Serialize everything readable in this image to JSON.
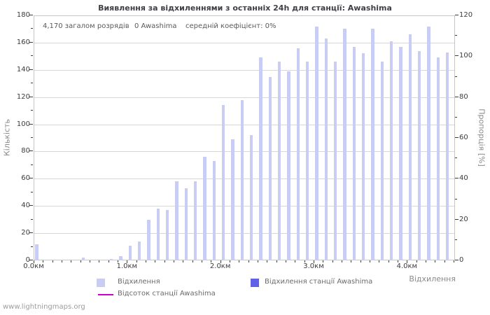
{
  "page": {
    "watermark": "www.lightningmaps.org"
  },
  "header": {
    "title": "Виявлення за відхиленнями з останніх 24h для станції: Awashima"
  },
  "stats": {
    "total": "4,170 загалом розрядів",
    "station": "0 Awashima",
    "coefficient": "середній коефіцієнт: 0%"
  },
  "axes": {
    "left_title": "Кількість",
    "right_title": "Пропорція [%]",
    "x_title": "Відхилення"
  },
  "legend": {
    "deviations": "Відхилення",
    "station_deviations": "Відхилення станції Awashima",
    "station_percent": "Відсоток станції Awashima"
  },
  "colors": {
    "bar": "#c9cdf3",
    "station_bar": "#6161e8",
    "percent_line": "#cc00cc",
    "grid": "#d6d6d6"
  },
  "chart_data": {
    "type": "bar",
    "title": "Виявлення за відхиленнями з останніх 24h для станції: Awashima",
    "xlabel": "Відхилення",
    "ylabel_left": "Кількість",
    "ylabel_right": "Пропорція [%]",
    "x_unit": "км",
    "bin_width_km": 0.1,
    "xlim_km": [
      0,
      4.515
    ],
    "ylim_left": [
      0,
      180
    ],
    "ylim_right": [
      0,
      120
    ],
    "grid": "horizontal-only",
    "legend_position": "bottom",
    "left_ticks": [
      0,
      20,
      40,
      60,
      80,
      100,
      120,
      140,
      160,
      180
    ],
    "right_ticks": [
      0,
      20,
      40,
      60,
      80,
      100,
      120
    ],
    "x_major_ticks": [
      {
        "km": 0,
        "label": "0.0км"
      },
      {
        "km": 1,
        "label": "1.0км"
      },
      {
        "km": 2,
        "label": "2.0км"
      },
      {
        "km": 3,
        "label": "3.0км"
      },
      {
        "km": 4,
        "label": "4.0км"
      }
    ],
    "bins_km": [
      0.0,
      0.1,
      0.2,
      0.3,
      0.4,
      0.5,
      0.6,
      0.7,
      0.8,
      0.9,
      1.0,
      1.1,
      1.2,
      1.3,
      1.4,
      1.5,
      1.6,
      1.7,
      1.8,
      1.9,
      2.0,
      2.1,
      2.2,
      2.3,
      2.4,
      2.5,
      2.6,
      2.7,
      2.8,
      2.9,
      3.0,
      3.1,
      3.2,
      3.3,
      3.4,
      3.5,
      3.6,
      3.7,
      3.8,
      3.9,
      4.0,
      4.1,
      4.2,
      4.3,
      4.4
    ],
    "series": [
      {
        "name": "Відхилення",
        "kind": "bar",
        "color": "#c9cdf3",
        "values": [
          12,
          0,
          0,
          0,
          0,
          2,
          0,
          0,
          1,
          3,
          11,
          14,
          30,
          38,
          37,
          58,
          53,
          58,
          76,
          73,
          114,
          89,
          118,
          92,
          149,
          135,
          146,
          139,
          156,
          146,
          172,
          163,
          146,
          170,
          157,
          152,
          170,
          146,
          161,
          157,
          166,
          154,
          172,
          149,
          153
        ]
      },
      {
        "name": "Відхилення станції Awashima",
        "kind": "bar",
        "color": "#6161e8",
        "values": [
          0,
          0,
          0,
          0,
          0,
          0,
          0,
          0,
          0,
          0,
          0,
          0,
          0,
          0,
          0,
          0,
          0,
          0,
          0,
          0,
          0,
          0,
          0,
          0,
          0,
          0,
          0,
          0,
          0,
          0,
          0,
          0,
          0,
          0,
          0,
          0,
          0,
          0,
          0,
          0,
          0,
          0,
          0,
          0,
          0
        ]
      },
      {
        "name": "Відсоток станції Awashima",
        "kind": "line",
        "color": "#cc00cc",
        "axis": "right",
        "values": [
          0,
          0,
          0,
          0,
          0,
          0,
          0,
          0,
          0,
          0,
          0,
          0,
          0,
          0,
          0,
          0,
          0,
          0,
          0,
          0,
          0,
          0,
          0,
          0,
          0,
          0,
          0,
          0,
          0,
          0,
          0,
          0,
          0,
          0,
          0,
          0,
          0,
          0,
          0,
          0,
          0,
          0,
          0,
          0,
          0
        ]
      }
    ],
    "annotations": [
      "4,170 загалом розрядів",
      "0 Awashima",
      "середній коефіцієнт: 0%"
    ]
  }
}
